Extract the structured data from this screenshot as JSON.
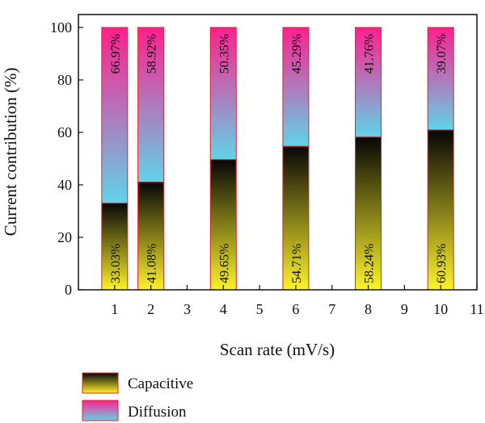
{
  "chart_data": {
    "type": "bar",
    "stacked": true,
    "xlabel": "Scan rate (mV/s)",
    "ylabel": "Current contribution (%)",
    "xlim": [
      0,
      11
    ],
    "ylim": [
      0,
      100
    ],
    "xticks": [
      1,
      2,
      3,
      4,
      5,
      6,
      7,
      8,
      9,
      10,
      11
    ],
    "yticks": [
      0,
      20,
      40,
      60,
      80,
      100
    ],
    "x": [
      1,
      2,
      4,
      6,
      8,
      10
    ],
    "series": [
      {
        "name": "Capacitive",
        "values": [
          33.03,
          41.08,
          49.65,
          54.71,
          58.24,
          60.93
        ],
        "labels": [
          "33.03%",
          "41.08%",
          "49.65%",
          "54.71%",
          "58.24%",
          "60.93%"
        ],
        "gradient": [
          "#fdf32a",
          "#060606"
        ]
      },
      {
        "name": "Diffusion",
        "values": [
          66.97,
          58.92,
          50.35,
          45.29,
          41.76,
          39.07
        ],
        "labels": [
          "66.97%",
          "58.92%",
          "50.35%",
          "45.29%",
          "41.76%",
          "39.07%"
        ],
        "gradient": [
          "#5fd4e8",
          "#ff1f8e"
        ]
      }
    ],
    "legend_position": "bottom-left",
    "bar_border_color": "#e8202a",
    "grid": false
  }
}
